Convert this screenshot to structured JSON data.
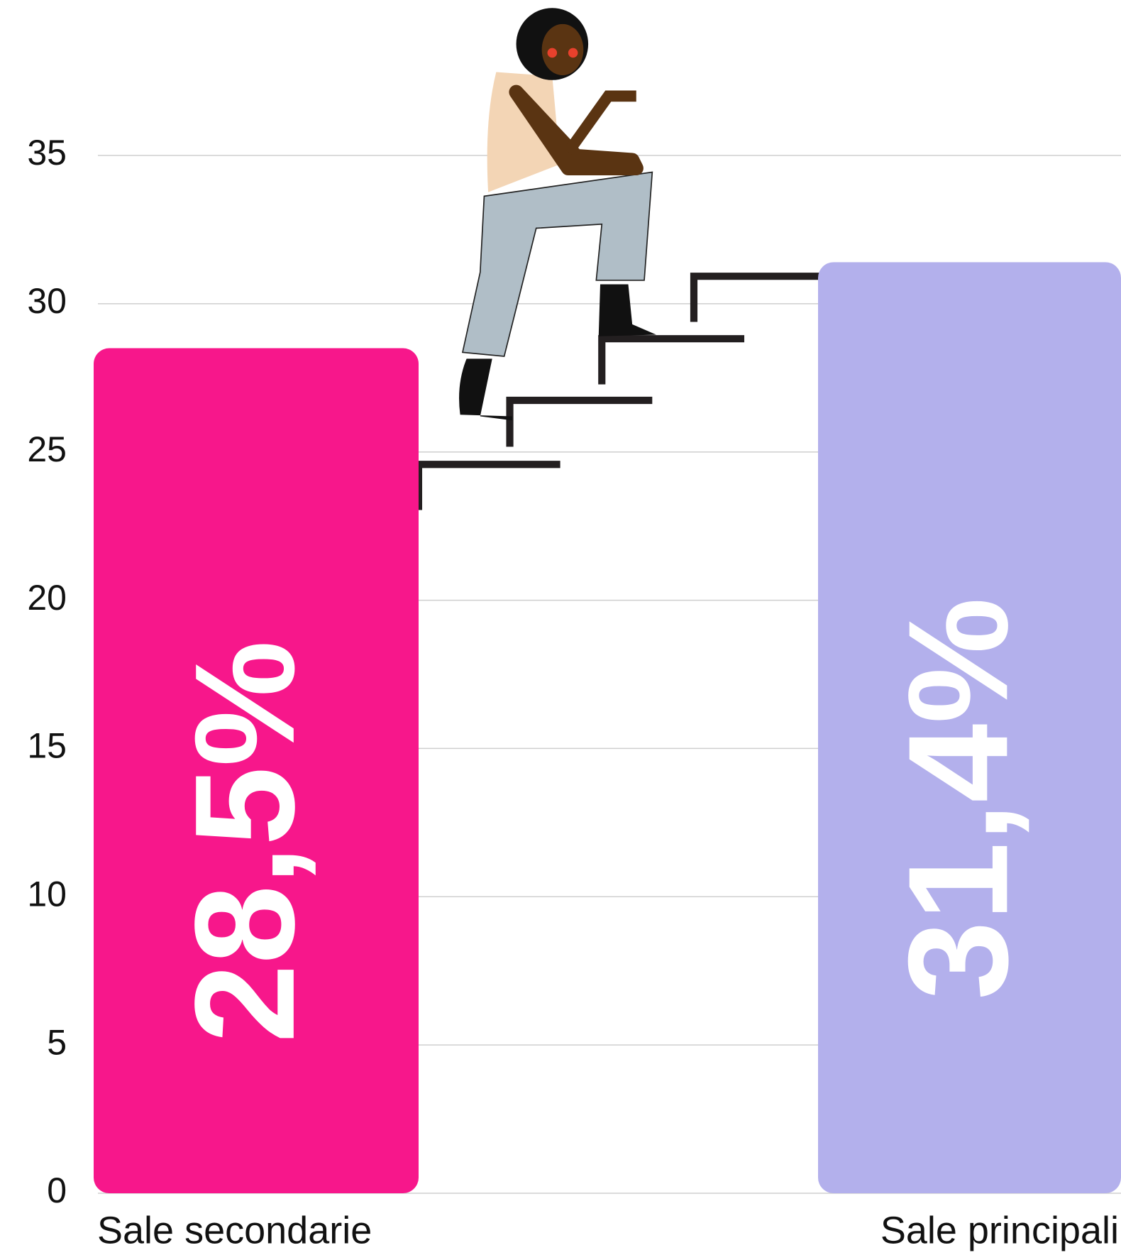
{
  "chart_data": {
    "type": "bar",
    "categories": [
      "Sale secondarie",
      "Sale principali"
    ],
    "values": [
      28.5,
      31.4
    ],
    "value_labels": [
      "28,5%",
      "31,4%"
    ],
    "colors": [
      "#f7178b",
      "#b3b0ec"
    ],
    "ylim": [
      0,
      35
    ],
    "yticks": [
      0,
      5,
      10,
      15,
      20,
      25,
      30,
      35
    ],
    "grid": true
  }
}
